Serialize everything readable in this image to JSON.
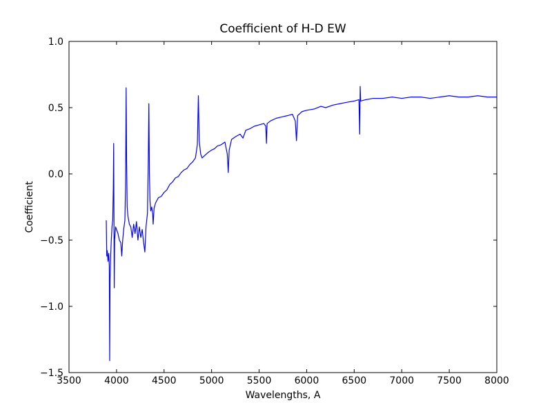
{
  "chart_data": {
    "type": "line",
    "title": "Coefficient of H-D EW",
    "xlabel": "Wavelengths, A",
    "ylabel": "Coefficient",
    "xlim": [
      3500,
      8000
    ],
    "ylim": [
      -1.5,
      1.0
    ],
    "xticks": [
      3500,
      4000,
      4500,
      5000,
      5500,
      6000,
      6500,
      7000,
      7500,
      8000
    ],
    "yticks": [
      {
        "value": -1.5,
        "label": "−1.5"
      },
      {
        "value": -1.0,
        "label": "−1.0"
      },
      {
        "value": -0.5,
        "label": "−0.5"
      },
      {
        "value": 0.0,
        "label": "0.0"
      },
      {
        "value": 0.5,
        "label": "0.5"
      },
      {
        "value": 1.0,
        "label": "1.0"
      }
    ],
    "grid": false,
    "series": [
      {
        "color": "#0000ff",
        "x": [
          3892,
          3897,
          3903,
          3910,
          3918,
          3924,
          3928,
          3932,
          3938,
          3945,
          3952,
          3960,
          3966,
          3970,
          3973,
          3976,
          3980,
          3990,
          4000,
          4015,
          4030,
          4045,
          4055,
          4065,
          4075,
          4088,
          4095,
          4101,
          4106,
          4112,
          4120,
          4135,
          4150,
          4165,
          4180,
          4195,
          4210,
          4225,
          4240,
          4255,
          4270,
          4285,
          4298,
          4310,
          4325,
          4334,
          4340,
          4346,
          4352,
          4360,
          4370,
          4380,
          4385,
          4395,
          4410,
          4440,
          4470,
          4500,
          4530,
          4560,
          4590,
          4620,
          4650,
          4680,
          4710,
          4740,
          4770,
          4800,
          4830,
          4850,
          4861,
          4870,
          4885,
          4900,
          4930,
          4960,
          5000,
          5030,
          5060,
          5100,
          5140,
          5165,
          5175,
          5185,
          5210,
          5250,
          5300,
          5330,
          5360,
          5400,
          5450,
          5500,
          5550,
          5570,
          5577,
          5584,
          5620,
          5680,
          5740,
          5800,
          5850,
          5880,
          5893,
          5905,
          5950,
          6000,
          6080,
          6150,
          6200,
          6280,
          6350,
          6420,
          6500,
          6550,
          6558,
          6563,
          6568,
          6620,
          6700,
          6800,
          6900,
          7000,
          7100,
          7200,
          7300,
          7400,
          7500,
          7600,
          7700,
          7800,
          7900,
          8000
        ],
        "values": [
          -0.35,
          -0.62,
          -0.58,
          -0.66,
          -0.6,
          -0.7,
          -1.41,
          -0.8,
          -0.62,
          -0.5,
          -0.4,
          -0.35,
          -0.1,
          0.23,
          -0.3,
          -0.86,
          -0.5,
          -0.4,
          -0.42,
          -0.45,
          -0.5,
          -0.52,
          -0.62,
          -0.5,
          -0.42,
          -0.35,
          -0.1,
          0.65,
          0.1,
          -0.25,
          -0.32,
          -0.38,
          -0.4,
          -0.48,
          -0.38,
          -0.45,
          -0.36,
          -0.5,
          -0.4,
          -0.48,
          -0.42,
          -0.52,
          -0.59,
          -0.4,
          -0.3,
          0.1,
          0.53,
          0.0,
          -0.2,
          -0.28,
          -0.25,
          -0.3,
          -0.38,
          -0.26,
          -0.22,
          -0.18,
          -0.17,
          -0.14,
          -0.12,
          -0.08,
          -0.06,
          -0.03,
          -0.02,
          0.01,
          0.03,
          0.04,
          0.07,
          0.09,
          0.12,
          0.22,
          0.59,
          0.25,
          0.15,
          0.12,
          0.14,
          0.16,
          0.18,
          0.19,
          0.21,
          0.22,
          0.24,
          0.15,
          0.01,
          0.18,
          0.26,
          0.28,
          0.3,
          0.27,
          0.33,
          0.34,
          0.36,
          0.37,
          0.38,
          0.36,
          0.23,
          0.38,
          0.4,
          0.42,
          0.43,
          0.44,
          0.45,
          0.4,
          0.25,
          0.44,
          0.47,
          0.48,
          0.49,
          0.51,
          0.5,
          0.52,
          0.53,
          0.54,
          0.55,
          0.56,
          0.3,
          0.66,
          0.55,
          0.56,
          0.57,
          0.57,
          0.58,
          0.57,
          0.58,
          0.58,
          0.57,
          0.58,
          0.59,
          0.58,
          0.58,
          0.59,
          0.58,
          0.58
        ]
      }
    ]
  }
}
